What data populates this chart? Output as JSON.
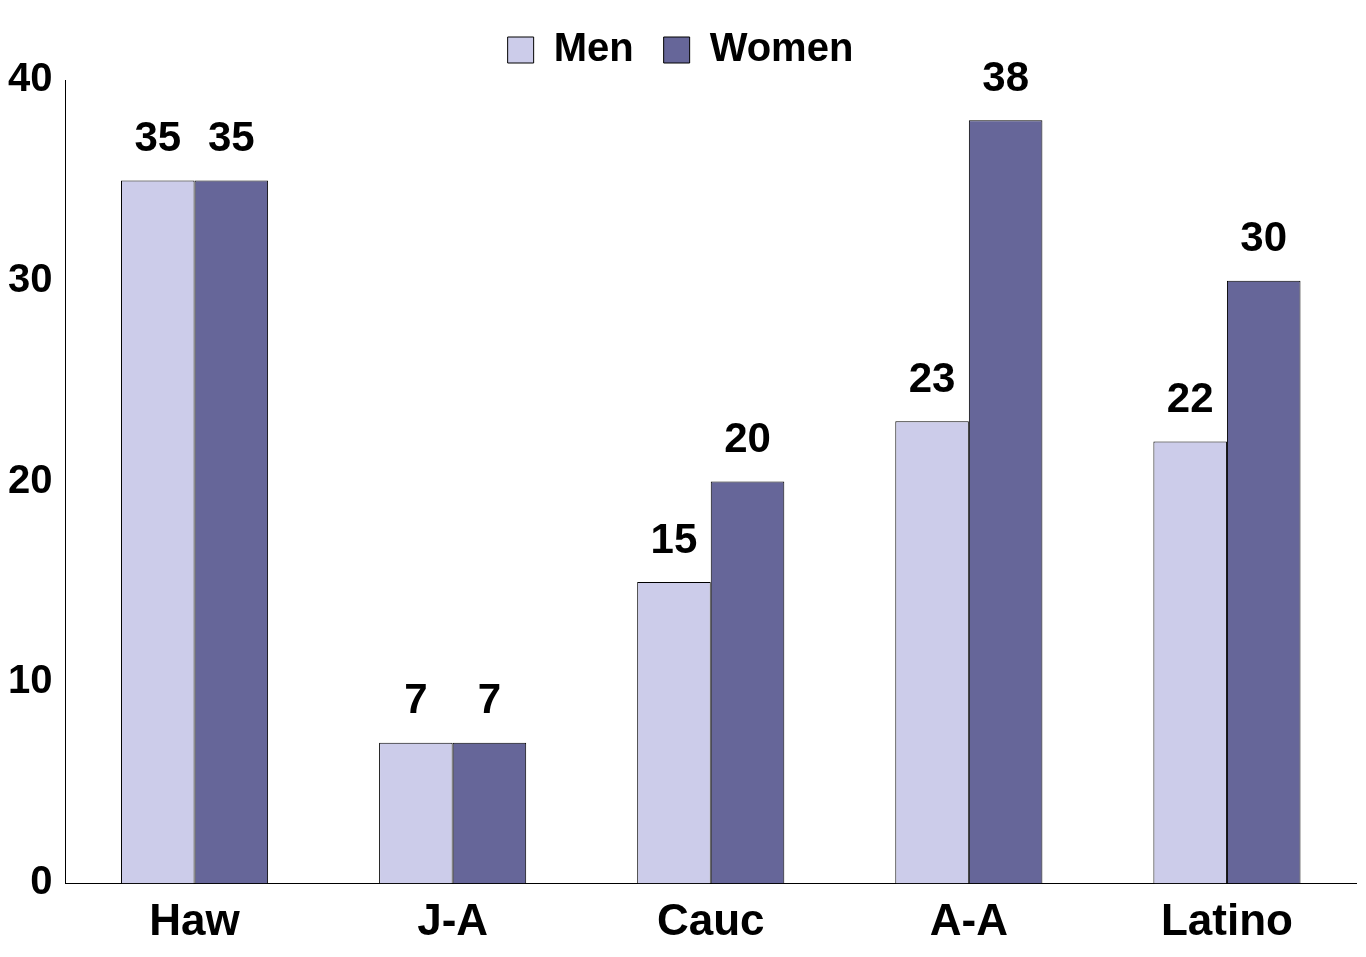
{
  "chart_data": {
    "type": "bar",
    "categories": [
      "Haw",
      "J-A",
      "Cauc",
      "A-A",
      "Latino"
    ],
    "series": [
      {
        "name": "Men",
        "color": "#ccccea",
        "values": [
          35,
          7,
          15,
          23,
          22
        ]
      },
      {
        "name": "Women",
        "color": "#666699",
        "values": [
          35,
          7,
          20,
          38,
          30
        ]
      }
    ],
    "ylim": [
      0,
      40
    ],
    "yticks": [
      0,
      10,
      20,
      30,
      40
    ],
    "grid": false,
    "legend": "top",
    "data_labels": true
  }
}
